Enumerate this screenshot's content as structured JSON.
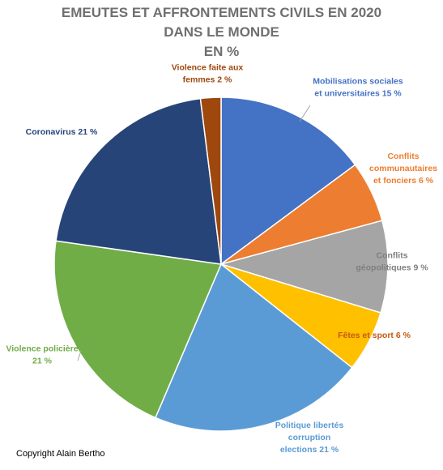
{
  "chart_data": {
    "type": "pie",
    "title": [
      "EMEUTES ET AFFRONTEMENTS CIVILS EN 2020",
      "DANS LE MONDE",
      "EN %"
    ],
    "slices": [
      {
        "label": [
          "Mobilisations sociales",
          "et universitaires 15 %"
        ],
        "value": 15,
        "color": "#4472C4",
        "label_color": "#4472C4"
      },
      {
        "label": [
          "Conflits",
          "communautaires",
          "et fonciers 6 %"
        ],
        "value": 6,
        "color": "#ED7D31",
        "label_color": "#ED7D31"
      },
      {
        "label": [
          "Conflits",
          "géopolitiques 9 %"
        ],
        "value": 9,
        "color": "#A5A5A5",
        "label_color": "#7F7F7F"
      },
      {
        "label": [
          "Fêtes et sport 6 %"
        ],
        "value": 6,
        "color": "#FFC000",
        "label_color": "#C55A11"
      },
      {
        "label": [
          "Politique libertés",
          "corruption",
          "elections 21 %"
        ],
        "value": 21,
        "color": "#5B9BD5",
        "label_color": "#5B9BD5"
      },
      {
        "label": [
          "Violence policière",
          "21 %"
        ],
        "value": 21,
        "color": "#70AD47",
        "label_color": "#70AD47"
      },
      {
        "label": [
          "Coronavirus 21 %"
        ],
        "value": 21,
        "color": "#264478",
        "label_color": "#264478"
      },
      {
        "label": [
          "Violence faite aux",
          "femmes 2 %"
        ],
        "value": 2,
        "color": "#9E480E",
        "label_color": "#9E480E"
      }
    ]
  },
  "footer": {
    "copyright": "Copyright Alain Bertho"
  }
}
